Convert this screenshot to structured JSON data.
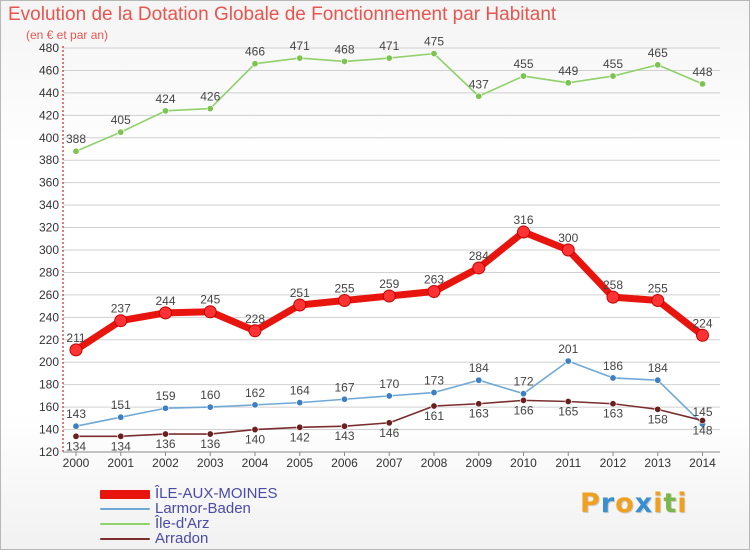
{
  "title": "Evolution de la Dotation Globale de Fonctionnement par Habitant",
  "subtitle": "(en € et par an)",
  "brand": {
    "letters": [
      "P",
      "r",
      "o",
      "x",
      "i",
      "t",
      "i"
    ],
    "colors": [
      "#f0a020",
      "#3a8fd0",
      "#f0a020",
      "#3a8fd0",
      "#f0a020",
      "#7ab648",
      "#f0a020"
    ]
  },
  "colors": {
    "title": "#e8554f",
    "axis": "#c62828",
    "grid": "#d0d0d0",
    "legend_text": "#4a4aa8"
  },
  "chart_data": {
    "type": "line",
    "x": [
      "2000",
      "2001",
      "2002",
      "2003",
      "2004",
      "2005",
      "2006",
      "2007",
      "2008",
      "2009",
      "2010",
      "2011",
      "2012",
      "2013",
      "2014"
    ],
    "ylim": [
      120,
      480
    ],
    "yticks": [
      120,
      140,
      160,
      180,
      200,
      220,
      240,
      260,
      280,
      300,
      320,
      340,
      360,
      380,
      400,
      420,
      440,
      460,
      480
    ],
    "grid": true,
    "legend_position": "bottom-left",
    "series": [
      {
        "name": "ÎLE-AUX-MOINES",
        "color": "#e8150e",
        "marker": "#ff3333",
        "bold": true,
        "values": [
          211,
          237,
          244,
          245,
          228,
          251,
          255,
          259,
          263,
          284,
          316,
          300,
          258,
          255,
          224
        ]
      },
      {
        "name": "Larmor-Baden",
        "color": "#6fa8d6",
        "marker": "#3d7fc2",
        "bold": false,
        "values": [
          143,
          151,
          159,
          160,
          162,
          164,
          167,
          170,
          173,
          184,
          172,
          201,
          186,
          184,
          145
        ]
      },
      {
        "name": "Île-d'Arz",
        "color": "#8fd16a",
        "marker": "#7cc44f",
        "bold": false,
        "values": [
          388,
          405,
          424,
          426,
          466,
          471,
          468,
          471,
          475,
          437,
          455,
          449,
          455,
          465,
          448
        ]
      },
      {
        "name": "Arradon",
        "color": "#7a2e2e",
        "marker": "#6a1f1f",
        "bold": false,
        "values": [
          134,
          134,
          136,
          136,
          140,
          142,
          143,
          146,
          161,
          163,
          166,
          165,
          163,
          158,
          148
        ]
      }
    ]
  }
}
